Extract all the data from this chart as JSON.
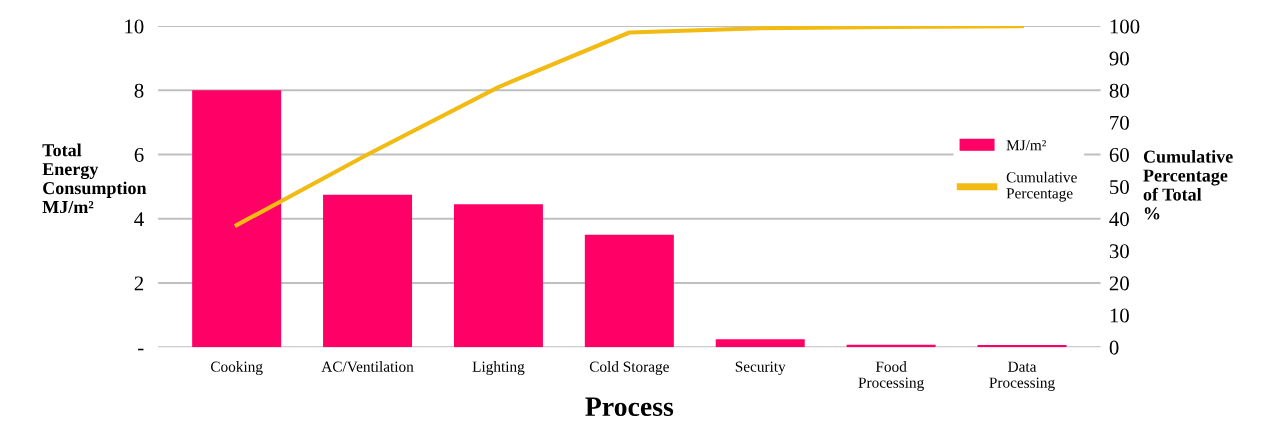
{
  "chart_data": {
    "type": "bar",
    "xlabel": "Process",
    "ylabel": "Total\nEnergy\nConsumption\nMJ/m²",
    "y2label": "Cumulative\nPercentage\nof Total\n%",
    "categories": [
      "Cooking",
      "AC/Ventilation",
      "Lighting",
      "Cold Storage",
      "Security",
      "Food\nProcessing",
      "Data\nProcessing"
    ],
    "series": [
      {
        "name": "MJ/m²",
        "color": "#ff0066",
        "values": [
          8.0,
          4.75,
          4.45,
          3.5,
          0.25,
          0.08,
          0.07
        ]
      },
      {
        "name": "Cumulative\nPercentage",
        "type": "line",
        "axis": "y2",
        "color": "#f2bb13",
        "values": [
          38,
          60,
          81,
          98,
          99.3,
          99.7,
          100
        ]
      }
    ],
    "ylim": [
      0,
      10
    ],
    "yticks": [
      {
        "value": 0,
        "label": "-"
      },
      2,
      4,
      6,
      8,
      10
    ],
    "y2lim": [
      0,
      100
    ],
    "y2ticks": [
      0,
      10,
      20,
      30,
      40,
      50,
      60,
      70,
      80,
      90,
      100
    ],
    "grid": "y",
    "legend": "right",
    "marker": "none",
    "line_style": "solid"
  }
}
